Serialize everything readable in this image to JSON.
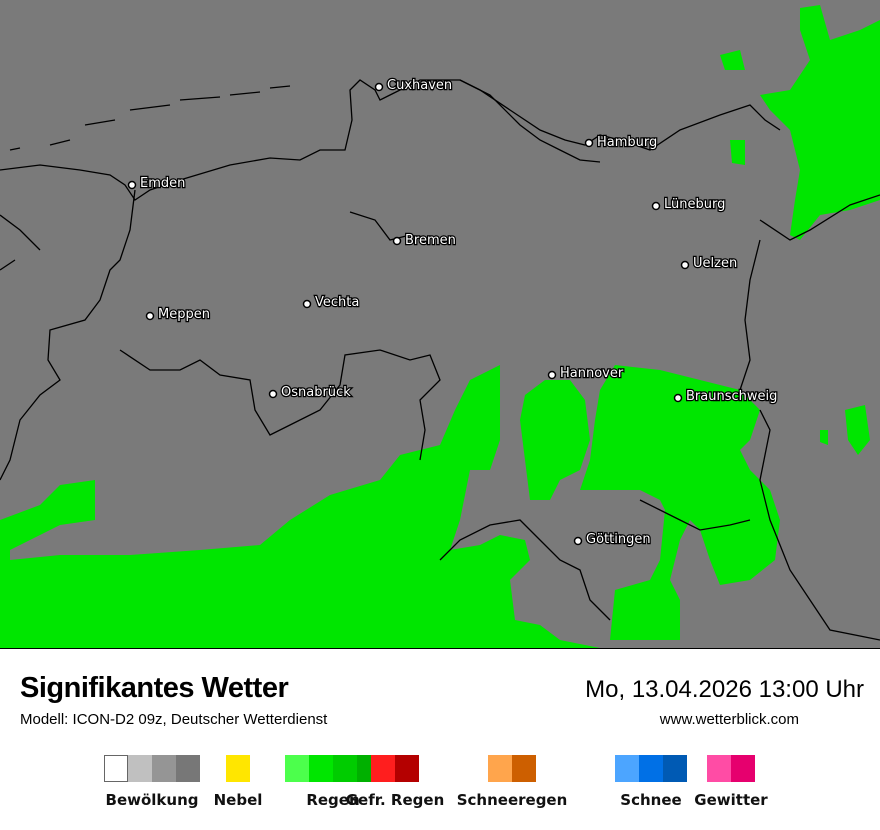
{
  "map": {
    "colors": {
      "background": "#7a7a7a",
      "rain": "#00e600",
      "border": "#000000"
    },
    "cities": [
      {
        "name": "Cuxhaven"
      },
      {
        "name": "Hamburg"
      },
      {
        "name": "Emden"
      },
      {
        "name": "Lüneburg"
      },
      {
        "name": "Bremen"
      },
      {
        "name": "Uelzen"
      },
      {
        "name": "Vechta"
      },
      {
        "name": "Meppen"
      },
      {
        "name": "Hannover"
      },
      {
        "name": "Osnabrück"
      },
      {
        "name": "Braunschweig"
      },
      {
        "name": "Göttingen"
      }
    ]
  },
  "header": {
    "title": "Signifikantes Wetter",
    "model": "Modell: ICON-D2 09z, Deutscher Wetterdienst",
    "datetime": "Mo, 13.04.2026 13:00 Uhr",
    "website": "www.wetterblick.com"
  },
  "legend": [
    {
      "label": "Bewölkung",
      "colors": [
        "#ffffff",
        "#c0c0c0",
        "#959595",
        "#777777"
      ]
    },
    {
      "label": "Nebel",
      "colors": [
        "#ffe600"
      ]
    },
    {
      "label": "Regen",
      "colors": [
        "#4cff4c",
        "#00e600",
        "#00cc00",
        "#00b000"
      ]
    },
    {
      "label": "Gefr. Regen",
      "colors": [
        "#ff1e1e",
        "#b40000"
      ]
    },
    {
      "label": "Schneeregen",
      "colors": [
        "#ffa54c",
        "#cd5f00"
      ]
    },
    {
      "label": "Schnee",
      "colors": [
        "#4ca5ff",
        "#0070e6",
        "#005ab4"
      ]
    },
    {
      "label": "Gewitter",
      "colors": [
        "#ff4ca5",
        "#e6006e"
      ]
    }
  ]
}
